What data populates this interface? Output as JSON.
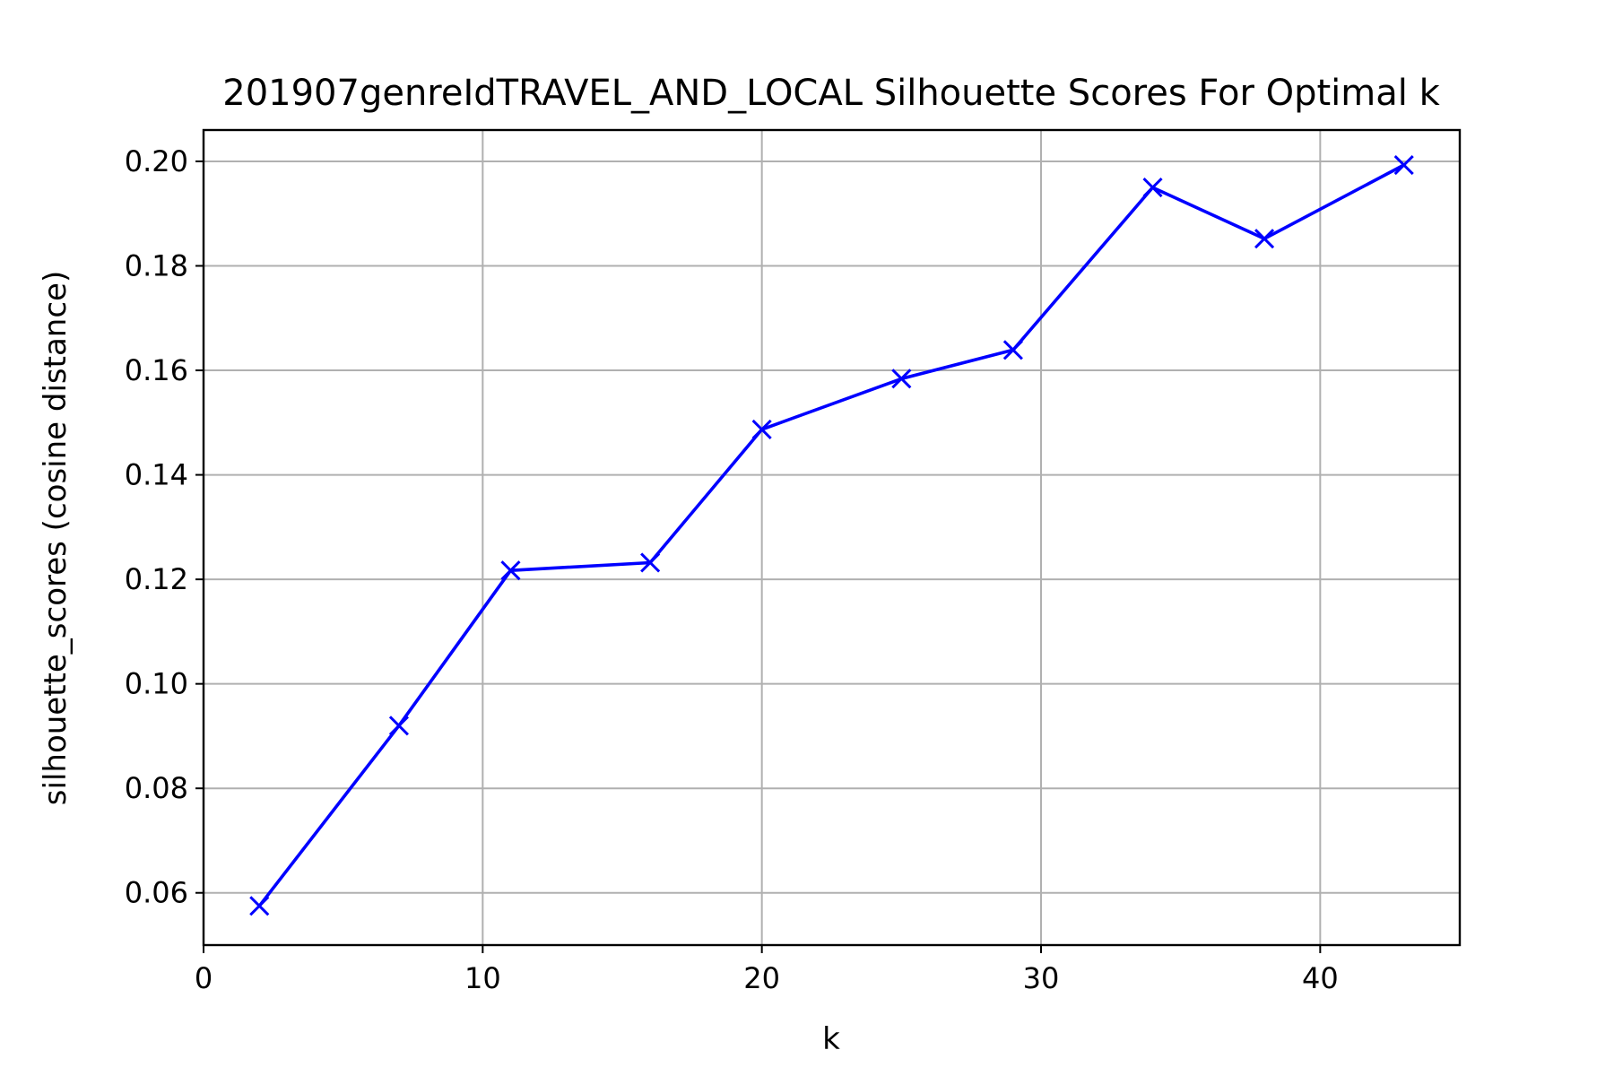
{
  "chart_data": {
    "type": "line",
    "title": "201907genreIdTRAVEL_AND_LOCAL Silhouette Scores For Optimal k",
    "xlabel": "k",
    "ylabel": "silhouette_scores (cosine distance)",
    "xlim": [
      0,
      45
    ],
    "ylim": [
      0.05,
      0.206
    ],
    "x_ticks": [
      0,
      10,
      20,
      30,
      40
    ],
    "x_tick_labels": [
      "0",
      "10",
      "20",
      "30",
      "40"
    ],
    "y_ticks": [
      0.06,
      0.08,
      0.1,
      0.12,
      0.14,
      0.16,
      0.18,
      0.2
    ],
    "y_tick_labels": [
      "0.06",
      "0.08",
      "0.10",
      "0.12",
      "0.14",
      "0.16",
      "0.18",
      "0.20"
    ],
    "grid": true,
    "series": [
      {
        "color": "#0000ff",
        "marker": "x",
        "x": [
          2,
          7,
          11,
          16,
          20,
          25,
          29,
          34,
          38,
          43
        ],
        "y": [
          0.0575,
          0.092,
          0.1217,
          0.1232,
          0.1487,
          0.1584,
          0.1639,
          0.195,
          0.1852,
          0.1993
        ]
      }
    ]
  }
}
